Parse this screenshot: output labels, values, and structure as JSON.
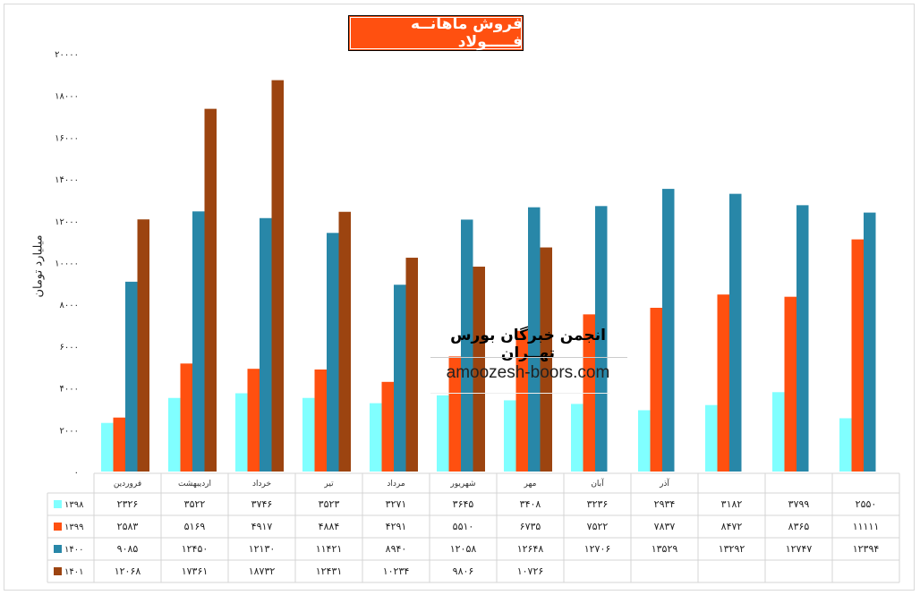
{
  "chart_data": {
    "type": "bar",
    "title": "فروش ماهانــه فـــــولاد",
    "ylabel": "میلیارد تومان",
    "xlabel": "",
    "ylim": [
      0,
      20000
    ],
    "yticks": [
      0,
      2000,
      4000,
      6000,
      8000,
      10000,
      12000,
      14000,
      16000,
      18000,
      20000
    ],
    "grid": false,
    "legend": "data-table",
    "categories": [
      "فروردین",
      "اردیبهشت",
      "خرداد",
      "تیر",
      "مرداد",
      "شهریور",
      "مهر",
      "آبان",
      "آذر",
      "",
      "",
      ""
    ],
    "series": [
      {
        "name": "۱۳۹۸",
        "color": "#80ffff",
        "values": [
          2326,
          3522,
          3746,
          3523,
          3271,
          3645,
          3408,
          3236,
          2934,
          3182,
          3799,
          2550
        ]
      },
      {
        "name": "۱۳۹۹",
        "color": "#ff5010",
        "values": [
          2583,
          5169,
          4917,
          4884,
          4291,
          5510,
          6735,
          7522,
          7837,
          8472,
          8365,
          11111
        ]
      },
      {
        "name": "۱۴۰۰",
        "color": "#2887a8",
        "values": [
          9085,
          12450,
          12130,
          11421,
          8940,
          12058,
          12648,
          12706,
          13529,
          13292,
          12747,
          12394
        ]
      },
      {
        "name": "۱۴۰۱",
        "color": "#9c4410",
        "values": [
          12068,
          17361,
          18732,
          12431,
          10234,
          9806,
          10726,
          null,
          null,
          null,
          null,
          null
        ]
      }
    ]
  },
  "watermark": {
    "name": "انجمن خبرگان بورس تهــران",
    "url": "amoozesh-boors.com"
  }
}
